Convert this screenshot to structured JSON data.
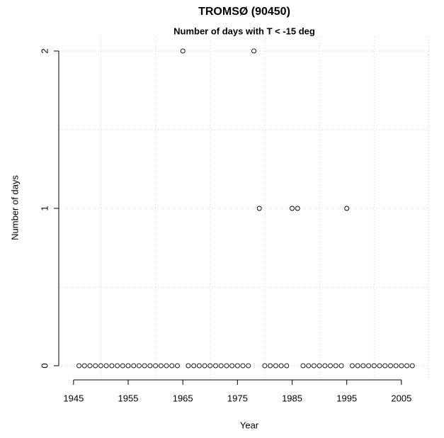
{
  "chart_data": {
    "type": "scatter",
    "title": "TROMSØ (90450)",
    "subtitle": "Number of days with T < -15 deg",
    "x_label": "Year",
    "y_label": "Number of days",
    "x": [
      1946,
      1947,
      1948,
      1949,
      1950,
      1951,
      1952,
      1953,
      1954,
      1955,
      1956,
      1957,
      1958,
      1959,
      1960,
      1961,
      1962,
      1963,
      1964,
      1965,
      1966,
      1967,
      1968,
      1969,
      1970,
      1971,
      1972,
      1973,
      1974,
      1975,
      1976,
      1977,
      1978,
      1979,
      1980,
      1981,
      1982,
      1983,
      1984,
      1985,
      1986,
      1987,
      1988,
      1989,
      1990,
      1991,
      1992,
      1993,
      1994,
      1995,
      1996,
      1997,
      1998,
      1999,
      2000,
      2001,
      2002,
      2003,
      2004,
      2005,
      2006,
      2007
    ],
    "values": [
      0,
      0,
      0,
      0,
      0,
      0,
      0,
      0,
      0,
      0,
      0,
      0,
      0,
      0,
      0,
      0,
      0,
      0,
      0,
      2,
      0,
      0,
      0,
      0,
      0,
      0,
      0,
      0,
      0,
      0,
      0,
      0,
      2,
      1,
      0,
      0,
      0,
      0,
      0,
      1,
      1,
      0,
      0,
      0,
      0,
      0,
      0,
      0,
      0,
      1,
      0,
      0,
      0,
      0,
      0,
      0,
      0,
      0,
      0,
      0,
      0,
      0
    ],
    "color": "#000000",
    "xlim": [
      1942.3,
      2010.2
    ],
    "ylim": [
      -0.09,
      2.09
    ],
    "xticks": [
      1945,
      1955,
      1965,
      1975,
      1985,
      1995,
      2005
    ],
    "yticks": [
      0,
      1,
      2
    ],
    "x_grid": [
      1950,
      1960,
      1970,
      1980,
      1990,
      2000,
      2010
    ],
    "y_grid": [
      0,
      0.5,
      1,
      1.5,
      2
    ],
    "grid": true
  }
}
